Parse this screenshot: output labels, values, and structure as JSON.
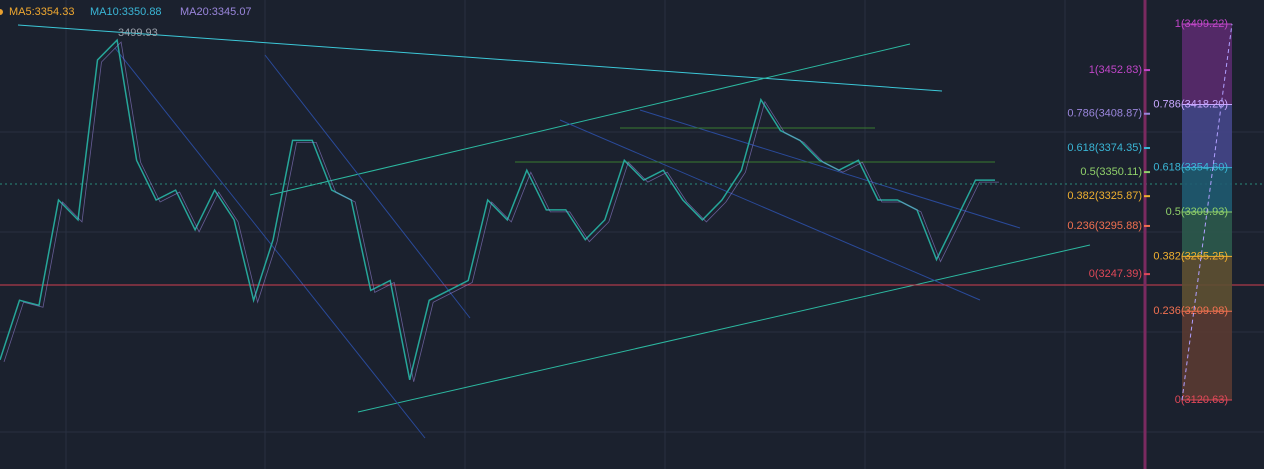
{
  "header": {
    "ma5": "MA5:3354.33",
    "ma10": "MA10:3350.88",
    "ma20": "MA20:3345.07"
  },
  "high_label": "3499.93",
  "price": {
    "close": [
      3161,
      3221,
      3216,
      3322,
      3302,
      3463,
      3483,
      3362,
      3322,
      3332,
      3292,
      3332,
      3302,
      3221,
      3282,
      3382,
      3382,
      3332,
      3322,
      3231,
      3241,
      3141,
      3221,
      3231,
      3241,
      3322,
      3302,
      3352,
      3312,
      3312,
      3282,
      3302,
      3362,
      3342,
      3352,
      3322,
      3302,
      3322,
      3352,
      3423,
      3392,
      3382,
      3362,
      3352,
      3362,
      3322,
      3322,
      3312,
      3262,
      3302,
      3342,
      3342
    ]
  },
  "fib_left": [
    {
      "label": "1(3452.83)",
      "price": 3452.83,
      "color": "#c046c8"
    },
    {
      "label": "0.786(3408.87)",
      "price": 3408.87,
      "color": "#9a86dc"
    },
    {
      "label": "0.618(3374.35)",
      "price": 3374.35,
      "color": "#3ab6d6"
    },
    {
      "label": "0.5(3350.11)",
      "price": 3350.11,
      "color": "#8fd06a"
    },
    {
      "label": "0.382(3325.87)",
      "price": 3325.87,
      "color": "#f0b030"
    },
    {
      "label": "0.236(3295.88)",
      "price": 3295.88,
      "color": "#f07050"
    },
    {
      "label": "0(3247.39)",
      "price": 3247.39,
      "color": "#e04858"
    }
  ],
  "fib_right": [
    {
      "label": "1(3499.22)",
      "price": 3499.22,
      "color": "#c046c8",
      "band": "#5a2a6e"
    },
    {
      "label": "0.786(3418.20)",
      "price": 3418.2,
      "color": "#c8a8ff",
      "band": "#45468a"
    },
    {
      "label": "0.618(3354.60)",
      "price": 3354.6,
      "color": "#3ab6d6",
      "band": "#1f5a70"
    },
    {
      "label": "0.5(3309.93)",
      "price": 3309.93,
      "color": "#8fd06a",
      "band": "#2c5a4c"
    },
    {
      "label": "0.382(3265.25)",
      "price": 3265.25,
      "color": "#f0b030",
      "band": "#5e5032"
    },
    {
      "label": "0.236(3209.98)",
      "price": 3209.98,
      "color": "#f07050",
      "band": "#5a3a32"
    },
    {
      "label": "0(3120.63)",
      "price": 3120.63,
      "color": "#e04858",
      "band": "#5a3a32"
    }
  ]
}
